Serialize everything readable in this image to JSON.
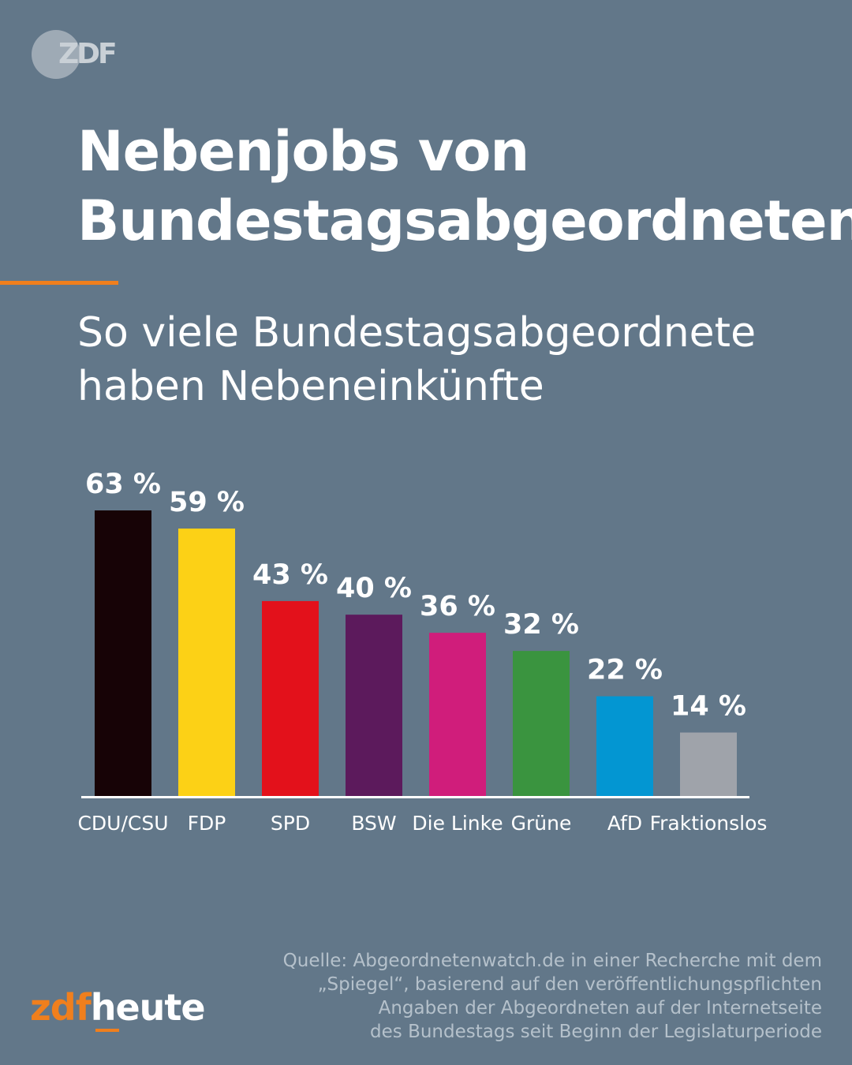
{
  "header": {
    "logo_text": "ZDF",
    "title": "Nebenjobs von Bundestagsabgeordneten",
    "subtitle": "So viele Bundestagsabgeordnete haben Nebeneinkünfte"
  },
  "chart_data": {
    "type": "bar",
    "categories": [
      "CDU/CSU",
      "FDP",
      "SPD",
      "BSW",
      "Die Linke",
      "Grüne",
      "AfD",
      "Fraktionslos"
    ],
    "values": [
      63,
      59,
      43,
      40,
      36,
      32,
      22,
      14
    ],
    "value_labels": [
      "63 %",
      "59 %",
      "43 %",
      "40 %",
      "36 %",
      "32 %",
      "22 %",
      "14 %"
    ],
    "colors": [
      "#170306",
      "#fcd116",
      "#e3111b",
      "#5c1a5c",
      "#d01d7b",
      "#3a943f",
      "#0396d2",
      "#9fa3aa"
    ],
    "unit": "%",
    "ylim": [
      0,
      63
    ],
    "grid": false,
    "legend": "none"
  },
  "footer": {
    "source_lines": [
      "Quelle: Abgeordnetenwatch.de in einer Recherche mit dem",
      "„Spiegel“, basierend auf den veröffentlichungspflichten",
      "Angaben der Abgeordneten auf der Internetseite",
      "des Bundestags seit Beginn der Legislaturperiode"
    ],
    "brand_zdf": "zdf",
    "brand_heute": "heute"
  },
  "colors": {
    "background": "#627789",
    "accent": "#f07f1d",
    "text": "#ffffff"
  }
}
